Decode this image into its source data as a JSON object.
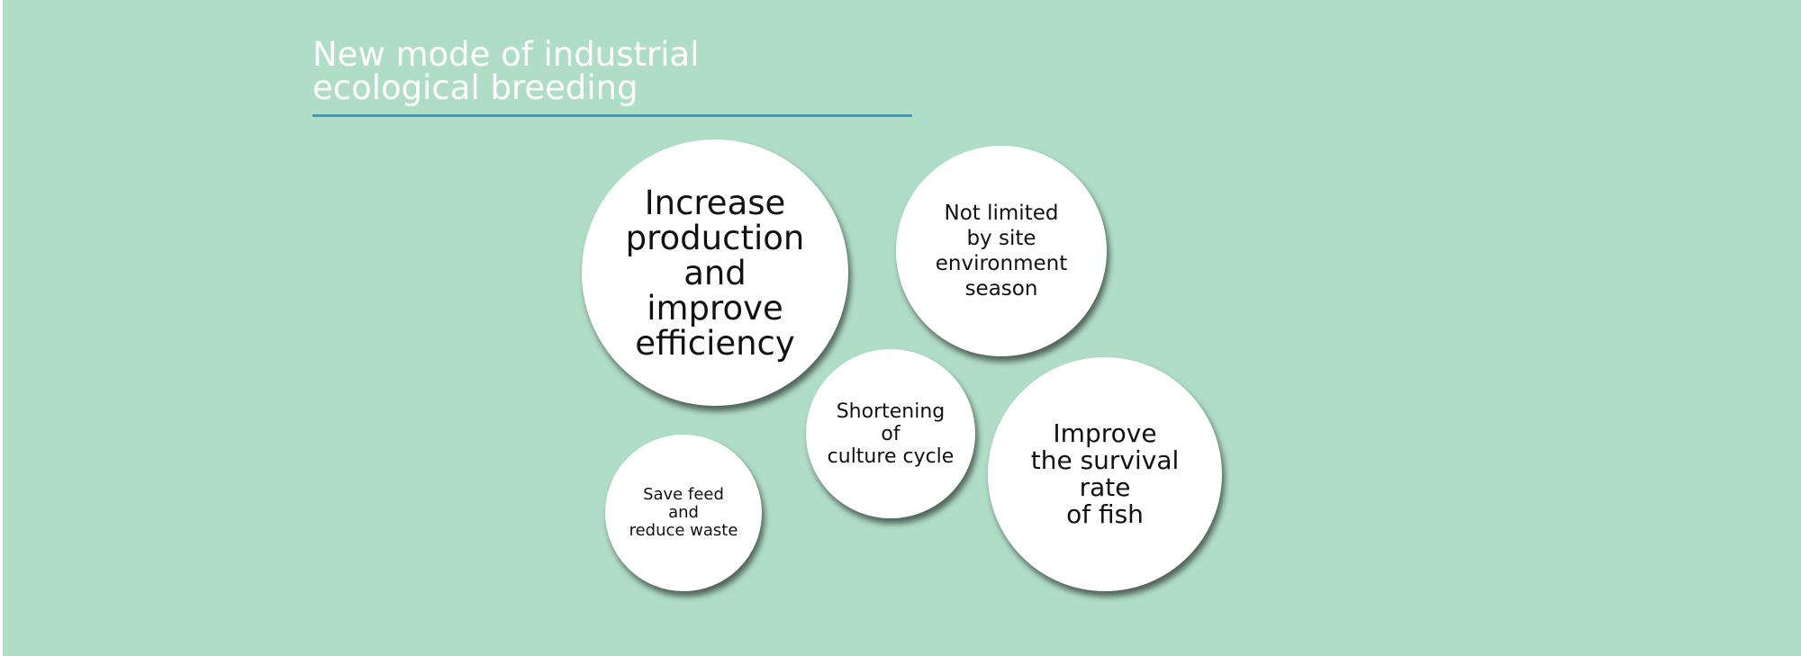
{
  "title": {
    "lines": [
      "New mode of industrial",
      "ecological breeding"
    ]
  },
  "bubbles": [
    {
      "id": "increase-production",
      "lines": [
        "Increase",
        "production",
        "and",
        "improve",
        "efficiency"
      ]
    },
    {
      "id": "not-limited",
      "lines": [
        "Not limited",
        "by site",
        "environment",
        "season"
      ]
    },
    {
      "id": "shortening-cycle",
      "lines": [
        "Shortening",
        "of",
        "culture cycle"
      ]
    },
    {
      "id": "survival-rate",
      "lines": [
        "Improve",
        "the survival",
        "rate",
        "of fish"
      ]
    },
    {
      "id": "save-feed",
      "lines": [
        "Save feed",
        "and",
        "reduce waste"
      ]
    }
  ],
  "colors": {
    "background": "#b0ddc6",
    "title_text": "#ffffff",
    "title_rule": "#3a9ad0",
    "bubble_fill": "#ffffff",
    "bubble_text": "#111111"
  }
}
